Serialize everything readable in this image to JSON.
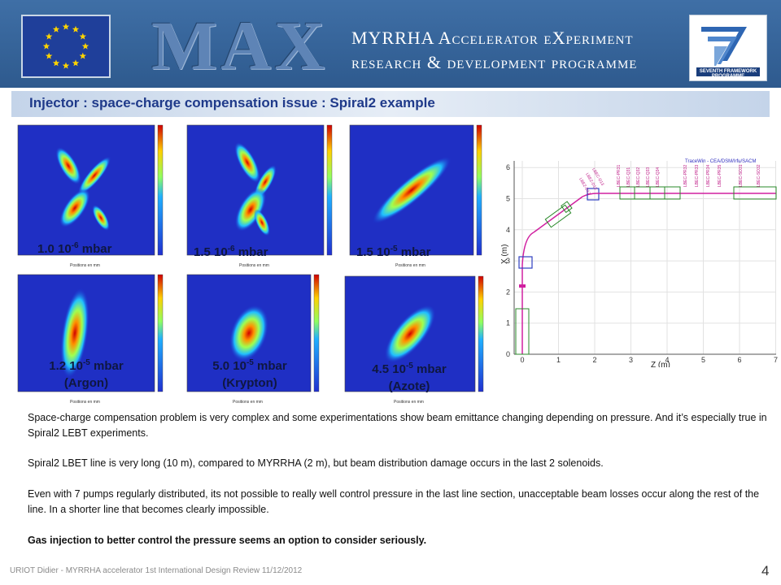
{
  "header": {
    "logo_text": "MAX",
    "line1": "MYRRHA Accelerator eXperiment",
    "line2": "research & development programme",
    "fp7_text": "SEVENTH FRAMEWORK PROGRAMME",
    "eu_icon": "eu-flag-icon",
    "fp7_icon": "fp7-logo-icon"
  },
  "title": "Injector : space-charge compensation issue : Spiral2 example",
  "plots": [
    {
      "value": "1.0 10",
      "exp": "-6",
      "unit": " mbar",
      "gas": ""
    },
    {
      "value": "1.5 10",
      "exp": "-6",
      "unit": " mbar",
      "gas": ""
    },
    {
      "value": "1.5 10",
      "exp": "-5",
      "unit": " mbar",
      "gas": ""
    },
    {
      "value": "1.2 10",
      "exp": "-5",
      "unit": " mbar",
      "gas": "(Argon)"
    },
    {
      "value": "5.0 10",
      "exp": "-5",
      "unit": " mbar",
      "gas": "(Krypton)"
    },
    {
      "value": "4.5 10",
      "exp": "-5",
      "unit": " mbar",
      "gas": "(Azote)"
    }
  ],
  "plot_axis_label": "Positions en mm",
  "beamline": {
    "legend": "TraceWin - CEA/DSM/Irfu/SACM",
    "xlabel": "Z (m)",
    "ylabel": "X (m)",
    "xticks": [
      "0",
      "1",
      "2",
      "3",
      "4",
      "5",
      "6",
      "7"
    ],
    "yticks": [
      "0",
      "1",
      "2",
      "3",
      "4",
      "5",
      "6"
    ],
    "elements": [
      "LBEC-PR31",
      "LBEC-Q31",
      "LBEC-Q32",
      "LBEC-Q33",
      "LBEC-Q34",
      "LBEC-PR32",
      "LBEC-PR33",
      "LBEC-PR34",
      "LBEC-PR35",
      "LBEC-SO31",
      "LBEC-SO32",
      "LBE2-D12",
      "LBE2-D12",
      "LBEC-D13"
    ]
  },
  "paragraphs": {
    "p1": "Space-charge compensation problem is very complex and some experimentations show beam emittance changing depending on pressure.  And it’s especially true in Spiral2 LEBT experiments.",
    "p2": "Spiral2 LBET line is very long (10 m), compared to MYRRHA (2 m), but beam distribution damage occurs in the last 2 solenoids.",
    "p3": "Even with 7 pumps regularly distributed, its not possible to really well control pressure in the last line section, unacceptable beam losses occur along the rest of the line. In a shorter line that becomes clearly impossible.",
    "p4": "Gas injection to better control the pressure seems an option to consider seriously."
  },
  "footer": "URIOT  Didier - MYRRHA  accelerator  1st International  Design Review  11/12/2012",
  "page_number": "4"
}
